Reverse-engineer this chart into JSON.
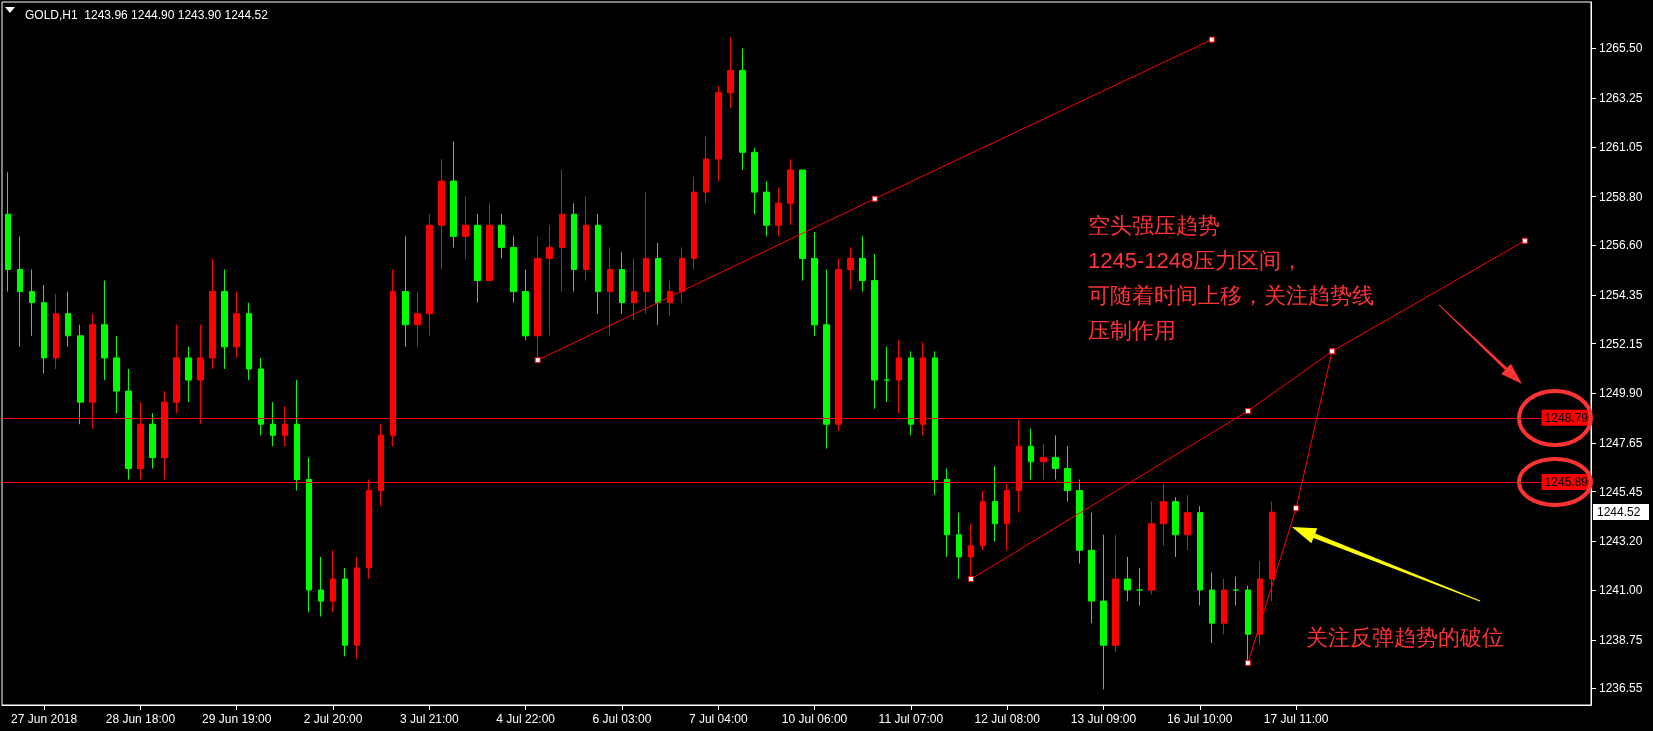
{
  "chart_data": {
    "type": "candlestick",
    "title": "GOLD,H1  1243.96 1244.90 1243.90 1244.52",
    "categories": [
      null,
      null,
      null,
      "27 Jun 2018",
      null,
      null,
      null,
      null,
      null,
      null,
      null,
      "28 Jun 18:00",
      null,
      null,
      null,
      null,
      null,
      null,
      null,
      "29 Jun 19:00",
      null,
      null,
      null,
      null,
      null,
      null,
      null,
      "2 Jul 20:00",
      null,
      null,
      null,
      null,
      null,
      null,
      null,
      "3 Jul 21:00",
      null,
      null,
      null,
      null,
      null,
      null,
      null,
      "4 Jul 22:00",
      null,
      null,
      null,
      null,
      null,
      null,
      null,
      "6 Jul 03:00",
      null,
      null,
      null,
      null,
      null,
      null,
      null,
      "7 Jul 04:00",
      null,
      null,
      null,
      null,
      null,
      null,
      null,
      "10 Jul 06:00",
      null,
      null,
      null,
      null,
      null,
      null,
      null,
      "11 Jul 07:00",
      null,
      null,
      null,
      null,
      null,
      null,
      null,
      "12 Jul 08:00",
      null,
      null,
      null,
      null,
      null,
      null,
      null,
      "13 Jul 09:00",
      null,
      null,
      null,
      null,
      null,
      null,
      null,
      "16 Jul 10:00",
      null,
      null,
      null,
      null,
      null,
      null,
      null,
      "17 Jul 11:00",
      null,
      null,
      null,
      null,
      null,
      null,
      null,
      null,
      null,
      null,
      null,
      null,
      null,
      null,
      null,
      null,
      null,
      null,
      null,
      null,
      null,
      null,
      null,
      null
    ],
    "ohlc": [
      [
        1258,
        1259.9,
        1254.5,
        1255.5
      ],
      [
        1255.5,
        1257,
        1252,
        1254.5
      ],
      [
        1254.5,
        1255.5,
        1252.5,
        1254
      ],
      [
        1254,
        1254.8,
        1250.8,
        1251.5
      ],
      [
        1251.5,
        1254.4,
        1251,
        1253.5
      ],
      [
        1253.5,
        1254.5,
        1252,
        1252.5
      ],
      [
        1252.5,
        1253,
        1248.5,
        1249.5
      ],
      [
        1249.5,
        1253.5,
        1248.3,
        1253
      ],
      [
        1253,
        1255,
        1250.5,
        1251.5
      ],
      [
        1251.5,
        1252.5,
        1249,
        1250
      ],
      [
        1250,
        1251,
        1246,
        1246.5
      ],
      [
        1246.5,
        1249.5,
        1246,
        1248.5
      ],
      [
        1248.5,
        1249,
        1246.5,
        1247
      ],
      [
        1247,
        1250,
        1246,
        1249.5
      ],
      [
        1249.5,
        1253,
        1249,
        1251.5
      ],
      [
        1251.5,
        1252,
        1249.5,
        1250.5
      ],
      [
        1250.5,
        1253,
        1248.5,
        1251.5
      ],
      [
        1251.5,
        1256,
        1251,
        1254.5
      ],
      [
        1254.5,
        1255.5,
        1251,
        1252
      ],
      [
        1252,
        1254.5,
        1251.5,
        1253.5
      ],
      [
        1253.5,
        1254,
        1250.5,
        1251
      ],
      [
        1251,
        1251.5,
        1248,
        1248.5
      ],
      [
        1248.5,
        1249.5,
        1247.5,
        1248
      ],
      [
        1248,
        1249.3,
        1247.5,
        1248.5
      ],
      [
        1248.5,
        1250.5,
        1245.5,
        1246
      ],
      [
        1246,
        1247,
        1240,
        1241
      ],
      [
        1241,
        1242.5,
        1239.8,
        1240.5
      ],
      [
        1240.5,
        1242.8,
        1240,
        1241.5
      ],
      [
        1241.5,
        1242,
        1238,
        1238.5
      ],
      [
        1238.5,
        1242.5,
        1237.9,
        1242
      ],
      [
        1242,
        1246,
        1241.5,
        1245.5
      ],
      [
        1245.5,
        1248.5,
        1244.8,
        1248
      ],
      [
        1248,
        1255.5,
        1247.5,
        1254.5
      ],
      [
        1254.5,
        1257,
        1252,
        1253
      ],
      [
        1253,
        1254.5,
        1252,
        1253.5
      ],
      [
        1253.5,
        1258,
        1252.5,
        1257.5
      ],
      [
        1257.5,
        1260.5,
        1255.5,
        1259.5
      ],
      [
        1259.5,
        1261.3,
        1256.5,
        1257
      ],
      [
        1257,
        1258.8,
        1256,
        1257.5
      ],
      [
        1257.5,
        1258,
        1254,
        1255
      ],
      [
        1255,
        1258.5,
        1255,
        1257.5
      ],
      [
        1257.5,
        1258,
        1256,
        1256.5
      ],
      [
        1256.5,
        1257,
        1254,
        1254.5
      ],
      [
        1254.5,
        1255.5,
        1252.3,
        1252.5
      ],
      [
        1252.5,
        1257,
        1251.4,
        1256
      ],
      [
        1256,
        1257.5,
        1252.5,
        1256.5
      ],
      [
        1256.5,
        1260,
        1254.5,
        1258
      ],
      [
        1258,
        1258.5,
        1254.5,
        1255.5
      ],
      [
        1255.5,
        1258.8,
        1255,
        1257.5
      ],
      [
        1257.5,
        1258,
        1253.5,
        1254.5
      ],
      [
        1254.5,
        1256.5,
        1252.5,
        1255.5
      ],
      [
        1255.5,
        1256.3,
        1253.5,
        1254
      ],
      [
        1254,
        1256,
        1253.2,
        1254.5
      ],
      [
        1254.5,
        1259,
        1253.5,
        1256
      ],
      [
        1256,
        1256.7,
        1253,
        1254
      ],
      [
        1254,
        1255,
        1253.4,
        1254.5
      ],
      [
        1254.5,
        1256.5,
        1254,
        1256
      ],
      [
        1256,
        1259.7,
        1255.5,
        1259
      ],
      [
        1259,
        1261.5,
        1258.5,
        1260.5
      ],
      [
        1260.5,
        1263.8,
        1259.5,
        1263.5
      ],
      [
        1263.5,
        1266,
        1262.8,
        1264.5
      ],
      [
        1264.5,
        1265.5,
        1260,
        1260.8
      ],
      [
        1260.8,
        1261,
        1258,
        1259
      ],
      [
        1259,
        1259.5,
        1257,
        1257.5
      ],
      [
        1257.5,
        1259.2,
        1257,
        1258.5
      ],
      [
        1258.5,
        1260.5,
        1257.5,
        1260
      ],
      [
        1260,
        1260,
        1255,
        1256
      ],
      [
        1256,
        1257.2,
        1252.5,
        1253
      ],
      [
        1253,
        1255.5,
        1247.4,
        1248.5
      ],
      [
        1248.5,
        1256,
        1248.2,
        1255.5
      ],
      [
        1255.5,
        1256.5,
        1254.6,
        1256
      ],
      [
        1256,
        1257,
        1254.5,
        1255
      ],
      [
        1255,
        1256.2,
        1249.2,
        1250.5
      ],
      [
        1250.5,
        1252,
        1249.5,
        1250.5
      ],
      [
        1250.5,
        1252.3,
        1249,
        1251.5
      ],
      [
        1251.5,
        1251.8,
        1248,
        1248.5
      ],
      [
        1248.5,
        1252.2,
        1248,
        1251.5
      ],
      [
        1251.5,
        1251.8,
        1245.3,
        1246
      ],
      [
        1246,
        1246.5,
        1242.5,
        1243.5
      ],
      [
        1243.5,
        1244.5,
        1241.5,
        1242.5
      ],
      [
        1242.5,
        1244,
        1241.4,
        1243
      ],
      [
        1243,
        1245.5,
        1242.8,
        1245
      ],
      [
        1245,
        1246.6,
        1243.2,
        1244
      ],
      [
        1244,
        1245.8,
        1242.8,
        1245.5
      ],
      [
        1245.5,
        1248.7,
        1244.5,
        1247.5
      ],
      [
        1247.5,
        1248.3,
        1246,
        1246.8
      ],
      [
        1246.8,
        1247.6,
        1246,
        1247
      ],
      [
        1247,
        1248,
        1246,
        1246.5
      ],
      [
        1246.5,
        1247.5,
        1245,
        1245.5
      ],
      [
        1245.5,
        1246,
        1242.2,
        1242.8
      ],
      [
        1242.8,
        1244.5,
        1239.5,
        1240.5
      ],
      [
        1240.5,
        1243.5,
        1236.5,
        1238.5
      ],
      [
        1238.5,
        1243.5,
        1238.2,
        1241.5
      ],
      [
        1241.5,
        1242.5,
        1240.5,
        1241
      ],
      [
        1241,
        1242,
        1240.3,
        1241
      ],
      [
        1241,
        1245,
        1240.8,
        1244
      ],
      [
        1244,
        1245.8,
        1243,
        1245
      ],
      [
        1245,
        1245.2,
        1242.5,
        1243.5
      ],
      [
        1243.5,
        1245.3,
        1242.8,
        1244.5
      ],
      [
        1244.5,
        1244.8,
        1240.3,
        1241
      ],
      [
        1241,
        1241.8,
        1238.6,
        1239.5
      ],
      [
        1239.5,
        1241.5,
        1239,
        1241
      ],
      [
        1241,
        1241.6,
        1240.3,
        1241
      ],
      [
        1241,
        1241.2,
        1237.7,
        1239
      ],
      [
        1239,
        1242.3,
        1238.5,
        1241.5
      ],
      [
        1241.5,
        1245,
        1240.5,
        1244.52
      ],
      null,
      null,
      null,
      null,
      null,
      null,
      null,
      null,
      null,
      null,
      null,
      null,
      null,
      null,
      null,
      null,
      null,
      null,
      null,
      null,
      null,
      null,
      null,
      null,
      null,
      null
    ],
    "colors": [
      "#00ff00",
      "#00ff00",
      "#00ff00",
      "#00ff00",
      "#ff0000",
      "#00ff00",
      "#00ff00",
      "#ff0000",
      "#00ff00",
      "#00ff00",
      "#00ff00",
      "#ff0000",
      "#00ff00",
      "#ff0000",
      "#ff0000",
      "#00ff00",
      "#ff0000",
      "#ff0000",
      "#00ff00",
      "#ff0000",
      "#00ff00",
      "#00ff00",
      "#00ff00",
      "#ff0000",
      "#00ff00",
      "#00ff00",
      "#00ff00",
      "#ff0000",
      "#00ff00",
      "#ff0000",
      "#ff0000",
      "#ff0000",
      "#ff0000",
      "#00ff00",
      "#ff0000",
      "#ff0000",
      "#ff0000",
      "#00ff00",
      "#ff0000",
      "#00ff00",
      "#ff0000",
      "#00ff00",
      "#00ff00",
      "#00ff00",
      "#ff0000",
      "#ff0000",
      "#ff0000",
      "#00ff00",
      "#ff0000",
      "#00ff00",
      "#ff0000",
      "#00ff00",
      "#ff0000",
      "#ff0000",
      "#00ff00",
      "#ff0000",
      "#ff0000",
      "#ff0000",
      "#ff0000",
      "#ff0000",
      "#ff0000",
      "#00ff00",
      "#00ff00",
      "#00ff00",
      "#ff0000",
      "#ff0000",
      "#00ff00",
      "#00ff00",
      "#00ff00",
      "#ff0000",
      "#ff0000",
      "#00ff00",
      "#00ff00",
      "#00ff00",
      "#ff0000",
      "#00ff00",
      "#ff0000",
      "#00ff00",
      "#00ff00",
      "#00ff00",
      "#ff0000",
      "#ff0000",
      "#00ff00",
      "#ff0000",
      "#ff0000",
      "#00ff00",
      "#ff0000",
      "#00ff00",
      "#00ff00",
      "#00ff00",
      "#00ff00",
      "#00ff00",
      "#ff0000",
      "#00ff00",
      "#00ff00",
      "#ff0000",
      "#ff0000",
      "#00ff00",
      "#ff0000",
      "#00ff00",
      "#00ff00",
      "#ff0000",
      "#00ff00",
      "#00ff00",
      "#ff0000",
      "#ff0000",
      null,
      null,
      null,
      null,
      null,
      null,
      null,
      null,
      null,
      null,
      null,
      null,
      null,
      null,
      null,
      null,
      null,
      null,
      null,
      null,
      null,
      null,
      null,
      null,
      null,
      null
    ],
    "series": [
      {
        "type": "line",
        "color": "#ff0000",
        "values": [
          null,
          null,
          null,
          null,
          null,
          null,
          null,
          null,
          null,
          null,
          null,
          null,
          null,
          null,
          null,
          null,
          null,
          null,
          null,
          null,
          null,
          null,
          null,
          null,
          null,
          null,
          null,
          null,
          null,
          null,
          null,
          null,
          null,
          null,
          null,
          null,
          null,
          null,
          null,
          null,
          null,
          null,
          null,
          null,
          1251.4,
          null,
          null,
          null,
          null,
          null,
          null,
          null,
          null,
          null,
          null,
          null,
          null,
          null,
          null,
          null,
          null,
          null,
          null,
          null,
          null,
          null,
          null,
          null,
          null,
          null,
          null,
          null,
          1258.7,
          null,
          null,
          null,
          null,
          null,
          null,
          null,
          null,
          null,
          null,
          null,
          null,
          null,
          null,
          null,
          null,
          null,
          null,
          null,
          null,
          null,
          null,
          null,
          null,
          null,
          null,
          null,
          1265.9,
          null,
          null,
          null,
          null,
          null,
          null,
          null,
          null,
          null,
          null,
          null,
          null,
          null,
          null,
          null,
          null,
          null,
          null,
          null,
          null,
          null,
          null,
          null,
          null,
          null,
          null,
          null,
          null,
          null,
          null,
          null
        ]
      },
      {
        "type": "line",
        "color": "#ff0000",
        "values": [
          null,
          null,
          null,
          null,
          null,
          null,
          null,
          null,
          null,
          null,
          null,
          null,
          null,
          null,
          null,
          null,
          null,
          null,
          null,
          null,
          null,
          null,
          null,
          null,
          null,
          null,
          null,
          null,
          null,
          null,
          null,
          null,
          null,
          null,
          null,
          null,
          null,
          null,
          null,
          null,
          null,
          null,
          null,
          null,
          null,
          null,
          null,
          null,
          null,
          null,
          null,
          null,
          null,
          null,
          null,
          null,
          null,
          null,
          null,
          null,
          null,
          null,
          null,
          null,
          null,
          null,
          null,
          null,
          null,
          null,
          null,
          null,
          null,
          null,
          null,
          null,
          null,
          null,
          null,
          null,
          1241.5,
          null,
          null,
          null,
          null,
          null,
          null,
          null,
          null,
          null,
          null,
          null,
          null,
          null,
          null,
          null,
          null,
          null,
          null,
          null,
          null,
          null,
          null,
          1249.1,
          null,
          null,
          null,
          null,
          null,
          null,
          1251.8,
          null,
          null,
          null,
          null,
          null,
          null,
          null,
          null,
          null,
          null,
          null,
          null,
          null,
          null,
          null,
          1256.8,
          null,
          null,
          null,
          null,
          null
        ]
      },
      {
        "type": "line",
        "color": "#ff0000",
        "values": [
          null,
          null,
          null,
          null,
          null,
          null,
          null,
          null,
          null,
          null,
          null,
          null,
          null,
          null,
          null,
          null,
          null,
          null,
          null,
          null,
          null,
          null,
          null,
          null,
          null,
          null,
          null,
          null,
          null,
          null,
          null,
          null,
          null,
          null,
          null,
          null,
          null,
          null,
          null,
          null,
          null,
          null,
          null,
          null,
          null,
          null,
          null,
          null,
          null,
          null,
          null,
          null,
          null,
          null,
          null,
          null,
          null,
          null,
          null,
          null,
          null,
          null,
          null,
          null,
          null,
          null,
          null,
          null,
          null,
          null,
          null,
          null,
          null,
          null,
          null,
          null,
          null,
          null,
          null,
          null,
          null,
          null,
          null,
          null,
          null,
          null,
          null,
          null,
          null,
          null,
          null,
          null,
          null,
          null,
          null,
          null,
          null,
          null,
          null,
          null,
          null,
          null,
          null,
          1237.7,
          null,
          null,
          null,
          1244.7,
          null,
          null,
          1251.8,
          null,
          null,
          null,
          null,
          null,
          null,
          null,
          null,
          null,
          null,
          null,
          null,
          null,
          null,
          null,
          null,
          null,
          null,
          null,
          null,
          null
        ]
      }
    ],
    "marker": "square",
    "ylim": [
      1235.8,
      1267.6
    ],
    "yticks": [
      {
        "value": 1265.5,
        "label": "1265.50"
      },
      {
        "value": 1263.25,
        "label": "1263.25"
      },
      {
        "value": 1261.05,
        "label": "1261.05"
      },
      {
        "value": 1258.8,
        "label": "1258.80"
      },
      {
        "value": 1256.6,
        "label": "1256.60"
      },
      {
        "value": 1254.35,
        "label": "1254.35"
      },
      {
        "value": 1252.15,
        "label": "1252.15"
      },
      {
        "value": 1249.9,
        "label": "1249.90"
      },
      {
        "value": 1247.65,
        "label": "1247.65"
      },
      {
        "value": 1245.45,
        "label": "1245.45"
      },
      {
        "value": 1243.2,
        "label": "1243.20"
      },
      {
        "value": 1241,
        "label": "1241.00"
      },
      {
        "value": 1238.75,
        "label": "1238.75"
      },
      {
        "value": 1236.55,
        "label": "1236.55"
      }
    ],
    "ref_lines": [
      {
        "axis": "y",
        "value": 1248.79,
        "label": "1248.79",
        "color": "#ff0000"
      },
      {
        "axis": "y",
        "value": 1245.89,
        "label": "1245.89",
        "color": "#ff0000"
      }
    ],
    "annotations": [
      "空头强压趋势",
      "1245-1248压力区间，",
      "可随着时间上移，关注趋势线",
      "压制作用",
      "关注反弹趋势的破位",
      "1244.52"
    ]
  }
}
